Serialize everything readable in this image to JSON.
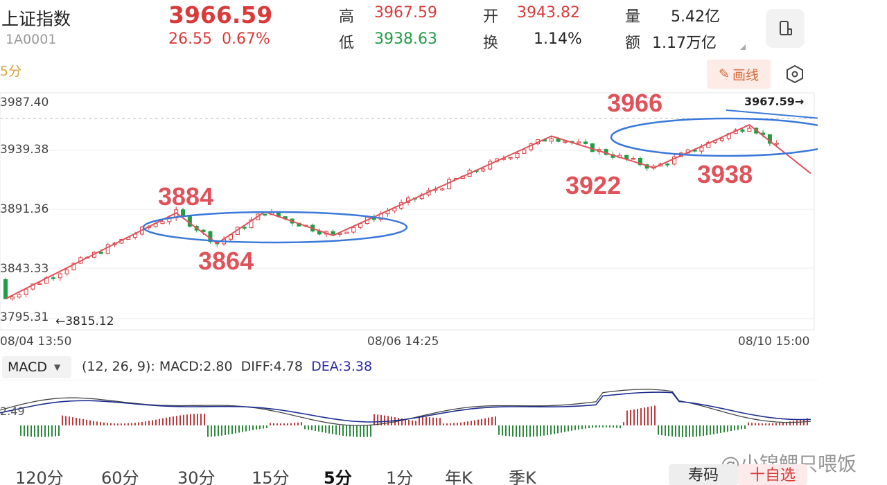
{
  "header": {
    "title": "上证指数",
    "code": "1A0001",
    "price": "3966.59",
    "change": "26.55",
    "change_pct": "0.67%",
    "high_label": "高",
    "high": "3967.59",
    "low_label": "低",
    "low": "3938.63",
    "open_label": "开",
    "open": "3943.82",
    "turnover_label": "换",
    "turnover": "1.14%",
    "volume_label": "量",
    "volume": "5.42亿",
    "amount_label": "额",
    "amount": "1.17万亿"
  },
  "toolbar": {
    "period": "5分",
    "draw_label": "画线"
  },
  "chart_data": {
    "type": "candlestick",
    "y_tick_labels": [
      "3987.40",
      "3939.38",
      "3891.36",
      "3843.33",
      "3795.31"
    ],
    "x_tick_labels": [
      "08/04 13:50",
      "08/06 14:25",
      "08/10 15:00"
    ],
    "min_marker": "←3815.12",
    "max_marker": "3967.59→",
    "annotations": [
      "3884",
      "3864",
      "3922",
      "3966",
      "3938"
    ],
    "trend_points": [
      {
        "i": 0,
        "v": 3813
      },
      {
        "i": 25,
        "v": 3889
      },
      {
        "i": 31,
        "v": 3862
      },
      {
        "i": 38,
        "v": 3890
      },
      {
        "i": 48,
        "v": 3869
      },
      {
        "i": 80,
        "v": 3957
      },
      {
        "i": 95,
        "v": 3929
      },
      {
        "i": 109,
        "v": 3967
      },
      {
        "i": 118,
        "v": 3924
      }
    ],
    "ylim": [
      3795.31,
      3987.4
    ]
  },
  "macd": {
    "selector": "MACD",
    "params": "(12, 26, 9):",
    "macd_label": "MACD:2.80",
    "diff_label": "DIFF:4.78",
    "dea_label": "DEA:3.38",
    "left_value": "2.49"
  },
  "tabs": [
    "120分",
    "60分",
    "30分",
    "15分",
    "5分",
    "1分",
    "年K",
    "季K"
  ],
  "active_tab": "5分",
  "buttons": {
    "shou": "寿码",
    "zixuan": "十自选"
  },
  "watermark": "@小锦鲤只喂饭"
}
